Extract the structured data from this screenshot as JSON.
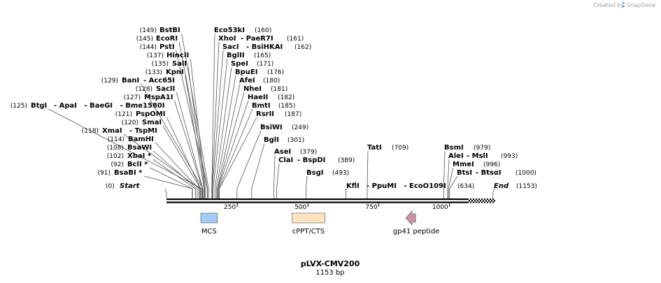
{
  "branding": {
    "created_by": "Created by",
    "product": "SnapGene"
  },
  "map": {
    "name": "pLVX-CMV200",
    "length_text": "1153 bp",
    "length": 1153,
    "ticks": [
      "250",
      "500",
      "750",
      "1000"
    ],
    "tick_values": [
      250,
      500,
      750,
      1000
    ],
    "ends": [
      {
        "pos": "(0)",
        "label": "Start",
        "at": 0
      },
      {
        "pos": "(1153)",
        "label": "End",
        "at": 1153
      }
    ],
    "features": [
      {
        "name": "MCS",
        "start": 121,
        "end": 180,
        "color": "#a0ccf5",
        "shape": "box"
      },
      {
        "name": "cPPT/CTS",
        "start": 443,
        "end": 560,
        "color": "#fde3c2",
        "shape": "box"
      },
      {
        "name": "gp41 peptide",
        "start": 845,
        "end": 880,
        "color": "#c793a8",
        "shape": "arrow-left"
      }
    ],
    "sites": [
      {
        "pos": "(149)",
        "name": "BstBI",
        "at": 149
      },
      {
        "pos": "(145)",
        "name": "EcoRI",
        "at": 145
      },
      {
        "pos": "(144)",
        "name": "PstI",
        "at": 144
      },
      {
        "pos": "(137)",
        "name": "HincII",
        "at": 137
      },
      {
        "pos": "(135)",
        "name": "SalI",
        "at": 135
      },
      {
        "pos": "(133)",
        "name": "KpnI",
        "at": 133
      },
      {
        "pos": "(129)",
        "name": "BanI",
        "extra": "- Acc65I",
        "at": 129
      },
      {
        "pos": "(128)",
        "name": "SacII",
        "at": 128
      },
      {
        "pos": "(127)",
        "name": "MspA1I",
        "at": 127
      },
      {
        "pos": "(125)",
        "name": "BtgI",
        "extra": "- ApaI   - BaeGI   - Bme1580I",
        "at": 125
      },
      {
        "pos": "(121)",
        "name": "PspOMI",
        "at": 121
      },
      {
        "pos": "(120)",
        "name": "SmaI",
        "at": 120
      },
      {
        "pos": "(118)",
        "name": "XmaI",
        "extra": "- TspMI",
        "at": 118
      },
      {
        "pos": "(114)",
        "name": "BamHI",
        "at": 114
      },
      {
        "pos": "(108)",
        "name": "BsaWI",
        "at": 108
      },
      {
        "pos": "(102)",
        "name": "XbaI *",
        "at": 102
      },
      {
        "pos": "(92)",
        "name": "BclI *",
        "at": 92
      },
      {
        "pos": "(91)",
        "name": "BsaBI *",
        "at": 91
      },
      {
        "pos": "(160)",
        "name": "Eco53kI",
        "at": 160
      },
      {
        "pos": "(161)",
        "name": "XhoI",
        "extra": "- PaeR7I",
        "at": 161
      },
      {
        "pos": "(162)",
        "name": "SacI",
        "extra": "- BsiHKAI",
        "at": 162
      },
      {
        "pos": "(165)",
        "name": "BglII",
        "at": 165
      },
      {
        "pos": "(171)",
        "name": "SpeI",
        "at": 171
      },
      {
        "pos": "(176)",
        "name": "BpuEI",
        "at": 176
      },
      {
        "pos": "(180)",
        "name": "AfeI",
        "at": 180
      },
      {
        "pos": "(181)",
        "name": "NheI",
        "at": 181
      },
      {
        "pos": "(182)",
        "name": "HaeII",
        "at": 182
      },
      {
        "pos": "(185)",
        "name": "BmtI",
        "at": 185
      },
      {
        "pos": "(187)",
        "name": "RsrII",
        "at": 187
      },
      {
        "pos": "(249)",
        "name": "BsiWI",
        "at": 249
      },
      {
        "pos": "(301)",
        "name": "BglI",
        "at": 301
      },
      {
        "pos": "(379)",
        "name": "AseI",
        "at": 379
      },
      {
        "pos": "(389)",
        "name": "ClaI",
        "extra": "- BspDI",
        "at": 389
      },
      {
        "pos": "(493)",
        "name": "BsgI",
        "at": 493
      },
      {
        "pos": "(709)",
        "name": "TatI",
        "at": 709
      },
      {
        "pos": "(634)",
        "name": "KflI",
        "extra": "- PpuMI   - EcoO109I",
        "at": 634
      },
      {
        "pos": "(979)",
        "name": "BsmI",
        "at": 979
      },
      {
        "pos": "(993)",
        "name": "AleI",
        "extra": "- MslI",
        "at": 993
      },
      {
        "pos": "(996)",
        "name": "MmeI",
        "at": 996
      },
      {
        "pos": "(1000)",
        "name": "BtsI",
        "extra": "- BtsαI",
        "at": 1000
      }
    ]
  }
}
